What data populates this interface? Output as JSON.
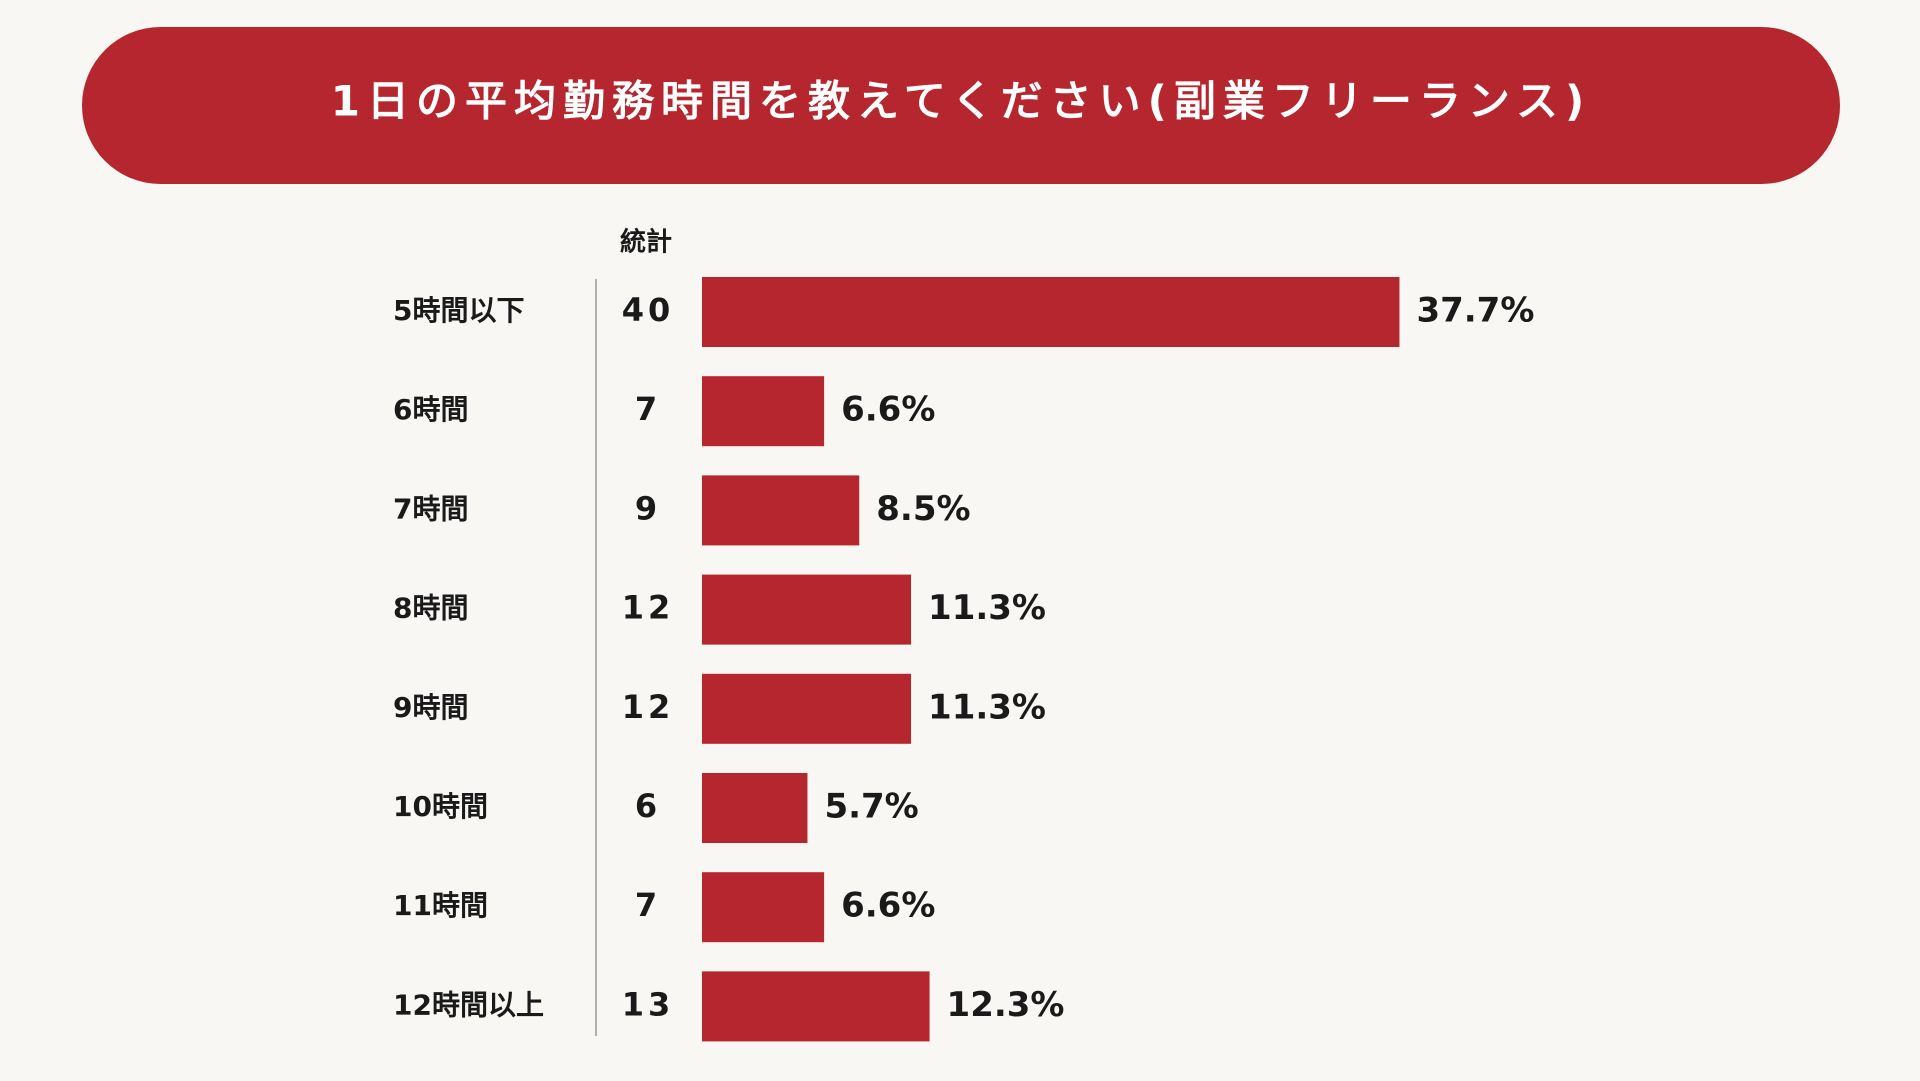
{
  "chart_data": {
    "type": "bar",
    "title": "1日の平均勤務時間を教えてください(副業フリーランス)",
    "count_header": "統計",
    "categories": [
      "5時間以下",
      "6時間",
      "7時間",
      "8時間",
      "9時間",
      "10時間",
      "11時間",
      "12時間以上"
    ],
    "counts": [
      40,
      7,
      9,
      12,
      12,
      6,
      7,
      13
    ],
    "values": [
      37.7,
      6.6,
      8.5,
      11.3,
      11.3,
      5.7,
      6.6,
      12.3
    ],
    "value_labels": [
      "37.7%",
      "6.6%",
      "8.5%",
      "11.3%",
      "11.3%",
      "5.7%",
      "6.6%",
      "12.3%"
    ],
    "color": "#b5262e"
  }
}
